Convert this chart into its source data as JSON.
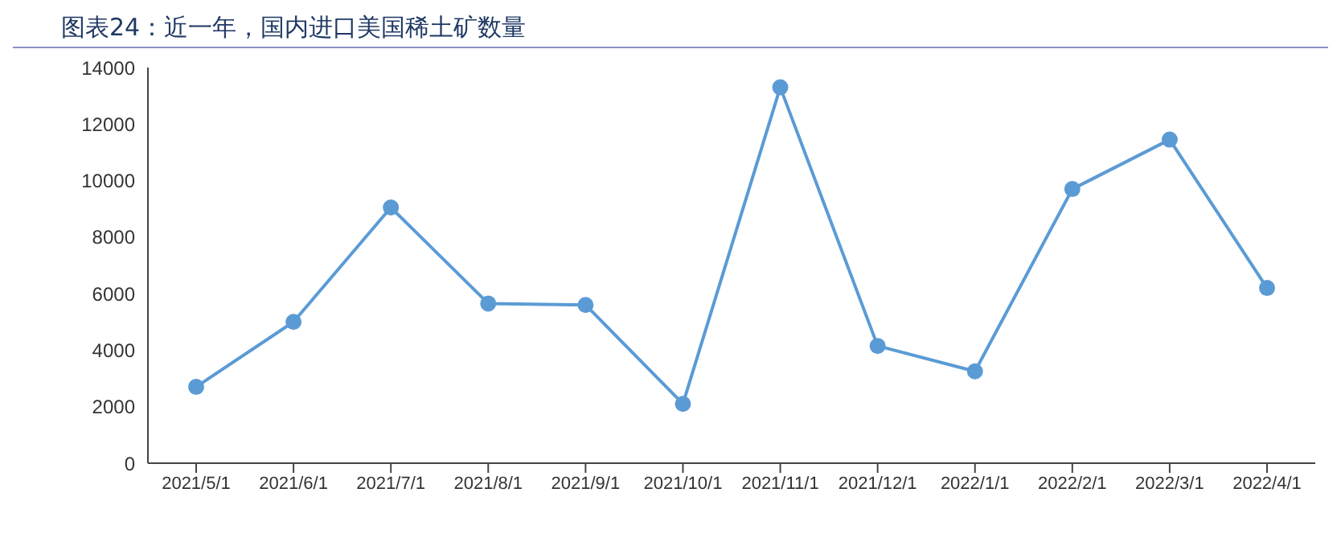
{
  "chart_data": {
    "type": "line",
    "title": "图表24：近一年，国内进口美国稀土矿数量",
    "categories": [
      "2021/5/1",
      "2021/6/1",
      "2021/7/1",
      "2021/8/1",
      "2021/9/1",
      "2021/10/1",
      "2021/11/1",
      "2021/12/1",
      "2022/1/1",
      "2022/2/1",
      "2022/3/1",
      "2022/4/1"
    ],
    "series": [
      {
        "color": "#5b9bd5",
        "values": [
          2700,
          5000,
          9050,
          5650,
          5600,
          2100,
          13300,
          4150,
          3250,
          9700,
          11450,
          6200
        ]
      }
    ],
    "ylim": [
      0,
      14000
    ],
    "yticks": [
      0,
      2000,
      4000,
      6000,
      8000,
      10000,
      12000,
      14000
    ],
    "grid": false,
    "legend": false,
    "marker": "circle",
    "line_style": "solid"
  }
}
